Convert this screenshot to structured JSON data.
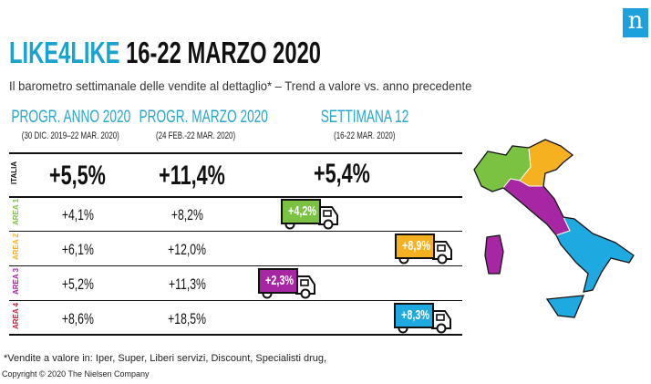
{
  "logo": "n",
  "title": {
    "brand": "LIKE4LIKE",
    "dates": "16-22 MARZO 2020"
  },
  "subtitle": "Il barometro settimanale delle vendite al dettaglio* – Trend a valore vs. anno precedente",
  "columns": [
    {
      "title": "PROGR. ANNO 2020",
      "range": "(30 DIC. 2019–22 MAR. 2020)"
    },
    {
      "title": "PROGR. MARZO 2020",
      "range": "(24 FEB.-22 MAR. 2020)"
    },
    {
      "title": "SETTIMANA 12",
      "range": "(16-22 MAR. 2020)"
    }
  ],
  "italia": {
    "label": "ITALIA",
    "anno": "+5,5%",
    "marzo": "+11,4%",
    "settimana": "+5,4%"
  },
  "areas": [
    {
      "label": "AREA 1",
      "color": "#7cc242",
      "anno": "+4,1%",
      "marzo": "+8,2%",
      "settimana": "+4,2%"
    },
    {
      "label": "AREA 2",
      "color": "#f5b120",
      "anno": "+6,1%",
      "marzo": "+12,0%",
      "settimana": "+8,9%"
    },
    {
      "label": "AREA 3",
      "color": "#a626a4",
      "anno": "+5,2%",
      "marzo": "+11,3%",
      "settimana": "+2,3%"
    },
    {
      "label": "AREA 4",
      "color": "#c0263c",
      "anno": "+8,6%",
      "marzo": "+18,5%",
      "settimana": "+8,3%"
    }
  ],
  "truck_colors": [
    "#7cc242",
    "#f5b120",
    "#a626a4",
    "#1ea9e1"
  ],
  "footnote": "*Vendite a valore in: Iper, Super, Liberi servizi, Discount, Specialisti drug,",
  "copyright": "Copyright © 2020 The Nielsen Company"
}
